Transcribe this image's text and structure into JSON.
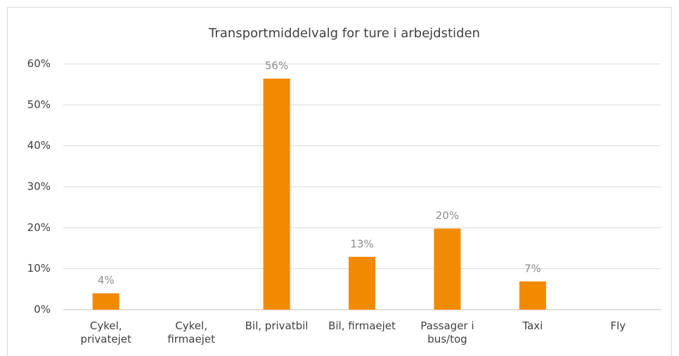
{
  "chart_data": {
    "type": "bar",
    "title": "Transportmiddelvalg for ture i arbejdstiden",
    "categories": [
      "Cykel, privatejet",
      "Cykel, firmaejet",
      "Bil, privatbil",
      "Bil, firmaejet",
      "Passager i bus/tog",
      "Taxi",
      "Fly"
    ],
    "values": [
      4,
      0,
      56.4,
      12.9,
      19.8,
      6.9,
      0
    ],
    "value_labels": [
      "4%",
      null,
      "56%",
      "13%",
      "20%",
      "7%",
      null
    ],
    "color": "#f28a00",
    "ylim": [
      0,
      60
    ],
    "yticks": [
      {
        "value": 0,
        "label": "0%"
      },
      {
        "value": 10,
        "label": "10%"
      },
      {
        "value": 20,
        "label": "20%"
      },
      {
        "value": 30,
        "label": "30%"
      },
      {
        "value": 40,
        "label": "40%"
      },
      {
        "value": 50,
        "label": "50%"
      },
      {
        "value": 60,
        "label": "60%"
      }
    ],
    "grid": true
  }
}
